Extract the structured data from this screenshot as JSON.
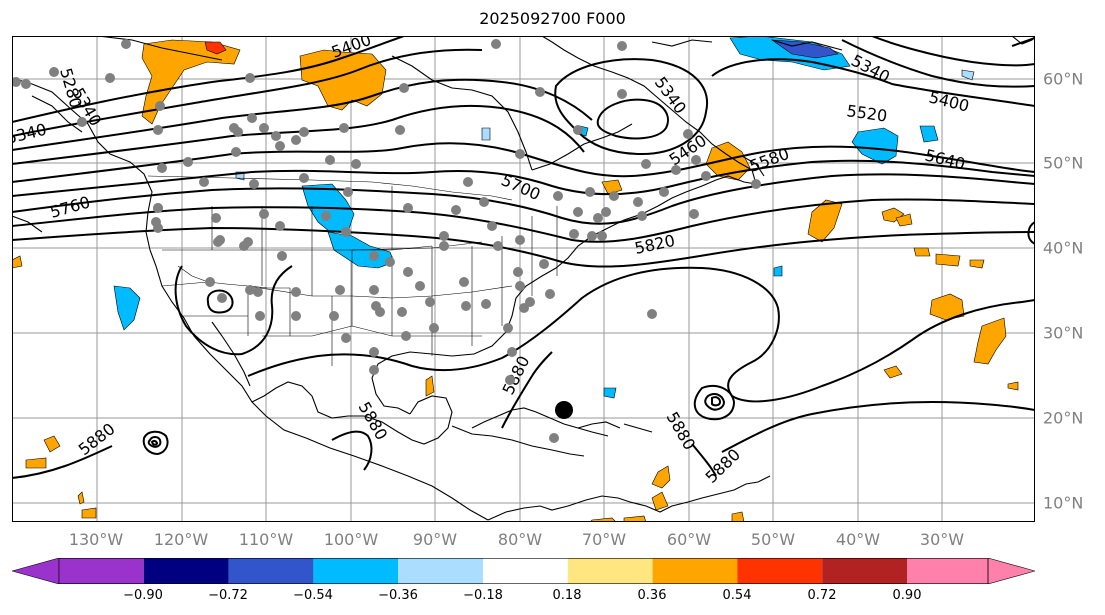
{
  "title": "2025092700 F000",
  "lon_labels": [
    "130°W",
    "120°W",
    "110°W",
    "100°W",
    "90°W",
    "80°W",
    "70°W",
    "60°W",
    "50°W",
    "40°W",
    "30°W"
  ],
  "lat_labels": [
    "60°N",
    "50°N",
    "40°N",
    "30°N",
    "20°N",
    "10°N"
  ],
  "colorbar": {
    "ticks": [
      "−0.90",
      "−0.72",
      "−0.54",
      "−0.36",
      "−0.18",
      "0.18",
      "0.36",
      "0.54",
      "0.72",
      "0.90"
    ],
    "colors": [
      "#9933cc",
      "#000080",
      "#3355cc",
      "#00bbff",
      "#aaddff",
      "#ffffff",
      "#ffe680",
      "#ffa500",
      "#ff3300",
      "#b22222",
      "#ff80aa"
    ]
  },
  "contour_labels": [
    "5400",
    "5340",
    "5280",
    "5340",
    "5760",
    "5700",
    "5820",
    "5880",
    "5880",
    "5880",
    "5880",
    "5880",
    "5880",
    "5340",
    "5400",
    "5520",
    "5640",
    "5580",
    "5460",
    "5340"
  ],
  "colors": {
    "positive_main": "#ffa500",
    "negative_main": "#00bbff",
    "stations": "#808080",
    "contour": "#000000",
    "grid": "#999999"
  }
}
